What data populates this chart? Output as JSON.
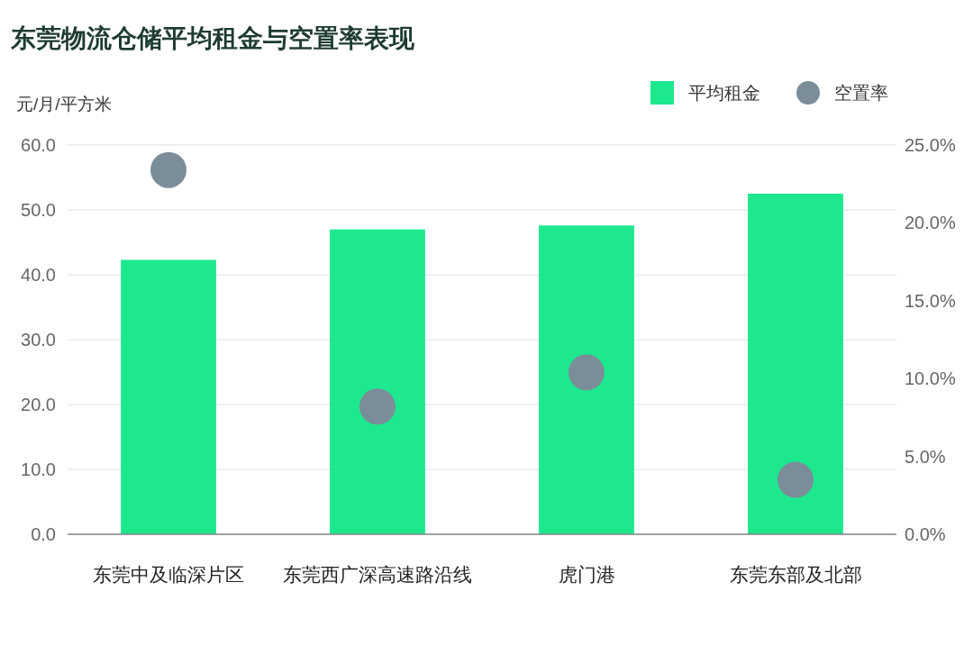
{
  "chart_data": {
    "type": "bar",
    "title": "东莞物流仓储平均租金与空置率表现",
    "ylabel": "元/月/平方米",
    "categories": [
      "东莞中及临深片区",
      "东莞西广深高速路沿线",
      "虎门港",
      "东莞东部及北部"
    ],
    "series": [
      {
        "name": "平均租金",
        "type": "bar",
        "color": "#1de88e",
        "values": [
          42.3,
          47.0,
          47.6,
          52.5
        ]
      },
      {
        "name": "空置率",
        "type": "scatter",
        "axis": "y2",
        "marker": "circle",
        "color": "#7b8d99",
        "values": [
          23.4,
          8.2,
          10.4,
          3.5
        ]
      }
    ],
    "ylim": [
      0,
      60
    ],
    "yticks": [
      {
        "value": 0,
        "label": "0.0"
      },
      {
        "value": 10,
        "label": "10.0"
      },
      {
        "value": 20,
        "label": "20.0"
      },
      {
        "value": 30,
        "label": "30.0"
      },
      {
        "value": 40,
        "label": "40.0"
      },
      {
        "value": 50,
        "label": "50.0"
      },
      {
        "value": 60,
        "label": "60.0"
      }
    ],
    "y2lim": [
      0,
      25
    ],
    "y2ticks": [
      {
        "value": 0,
        "label": "0.0%"
      },
      {
        "value": 5,
        "label": "5.0%"
      },
      {
        "value": 10,
        "label": "10.0%"
      },
      {
        "value": 15,
        "label": "15.0%"
      },
      {
        "value": 20,
        "label": "20.0%"
      },
      {
        "value": 25,
        "label": "25.0%"
      }
    ],
    "grid": "y",
    "legend": "top right"
  }
}
